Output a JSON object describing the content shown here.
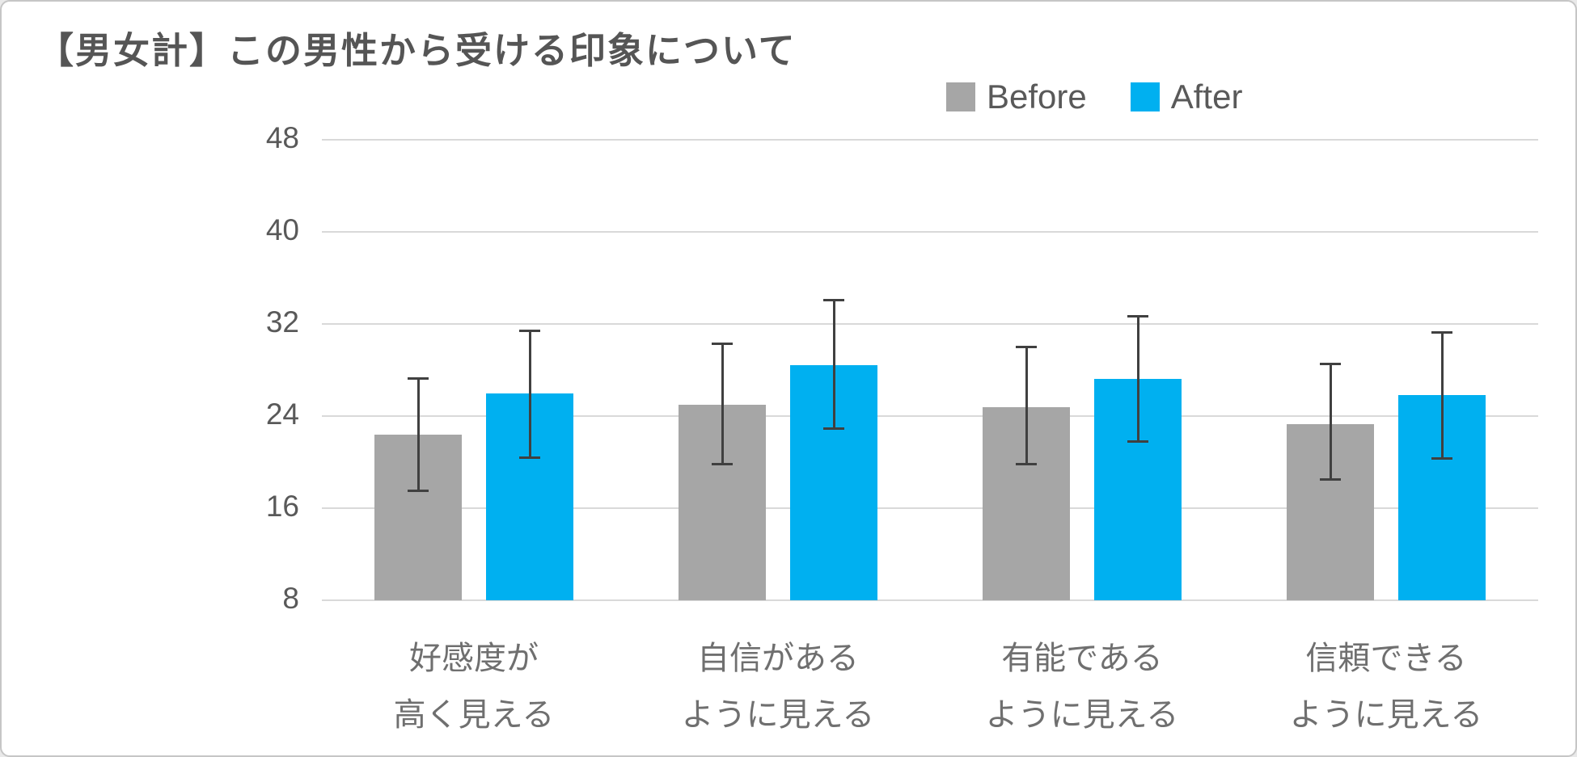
{
  "title": "【男女計】この男性から受ける印象について",
  "legend": [
    {
      "label": "Before",
      "color": "#A6A6A6"
    },
    {
      "label": "After",
      "color": "#00B0F0"
    }
  ],
  "colors": {
    "gridline": "#D9D9D9",
    "error_bar": "#404040",
    "title_text": "#555555",
    "axis_text": "#595959",
    "category_text": "#6f6f6f"
  },
  "chart_data": {
    "type": "bar",
    "title": "【男女計】この男性から受ける印象について",
    "categories": [
      [
        "好感度が",
        "高く見える"
      ],
      [
        "自信がある",
        "ように見える"
      ],
      [
        "有能である",
        "ように見える"
      ],
      [
        "信頼できる",
        "ように見える"
      ]
    ],
    "series": [
      {
        "name": "Before",
        "color": "#A6A6A6",
        "values": [
          22.4,
          25.0,
          24.8,
          23.3
        ],
        "error_high": [
          27.4,
          30.4,
          30.1,
          28.6
        ],
        "error_low": [
          17.4,
          19.7,
          19.7,
          18.4
        ]
      },
      {
        "name": "After",
        "color": "#00B0F0",
        "values": [
          26.0,
          28.4,
          27.2,
          25.8
        ],
        "error_high": [
          31.5,
          34.2,
          32.8,
          31.4
        ],
        "error_low": [
          20.3,
          22.8,
          21.7,
          20.2
        ]
      }
    ],
    "y_axis": {
      "min": 8,
      "max": 48,
      "step": 8,
      "ticks": [
        48,
        40,
        32,
        24,
        16,
        8
      ]
    },
    "grid": true,
    "legend_position": "top-right"
  }
}
